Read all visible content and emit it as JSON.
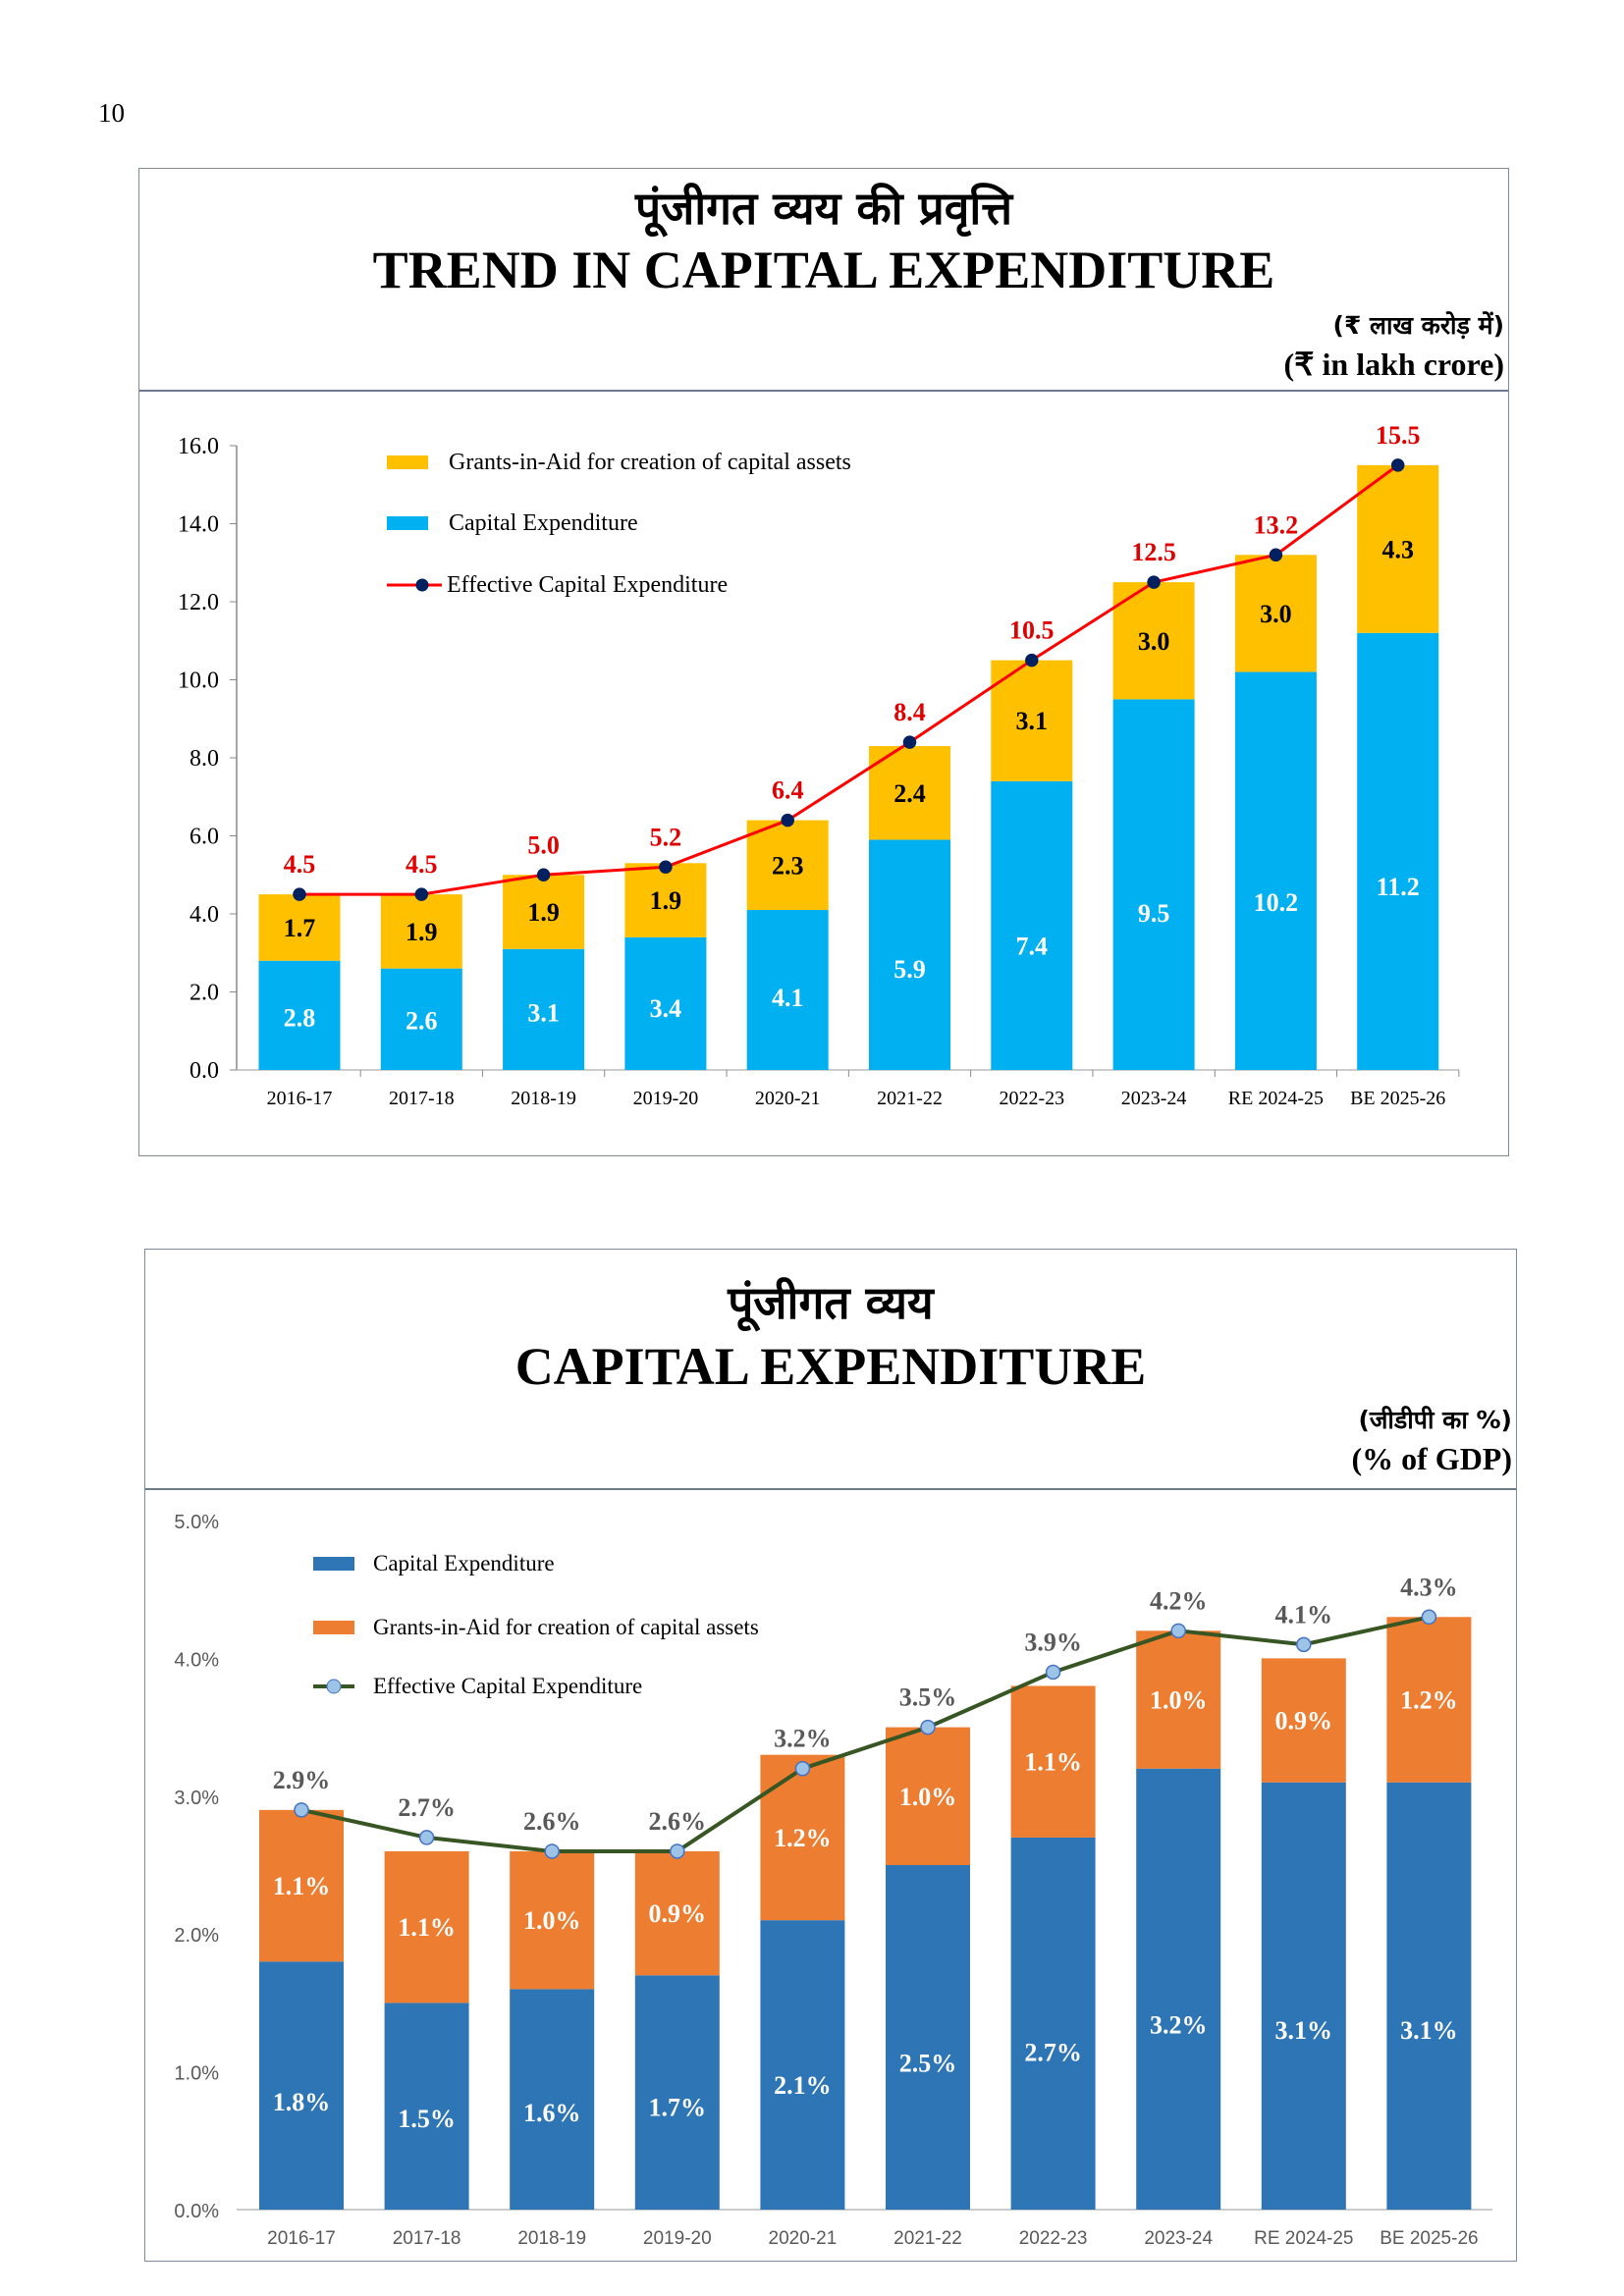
{
  "page_number": "10",
  "chart_data": [
    {
      "type": "bar",
      "stacked": true,
      "title_hindi": "पूंजीगत व्यय की प्रवृत्ति",
      "title": "TREND IN CAPITAL EXPENDITURE",
      "unit_hindi": "(₹ लाख करोड़ में)",
      "unit": "(₹ in lakh crore)",
      "categories": [
        "2016-17",
        "2017-18",
        "2018-19",
        "2019-20",
        "2020-21",
        "2021-22",
        "2022-23",
        "2023-24",
        "RE 2024-25",
        "BE 2025-26"
      ],
      "ylim": [
        0,
        16
      ],
      "yticks": [
        "0.0",
        "2.0",
        "4.0",
        "6.0",
        "8.0",
        "10.0",
        "12.0",
        "14.0",
        "16.0"
      ],
      "legend_placement": "top-left",
      "series": [
        {
          "name": "Capital Expenditure",
          "kind": "bar",
          "color": "#00b0f0",
          "values": [
            2.8,
            2.6,
            3.1,
            3.4,
            4.1,
            5.9,
            7.4,
            9.5,
            10.2,
            11.2
          ],
          "labels": [
            "2.8",
            "2.6",
            "3.1",
            "3.4",
            "4.1",
            "5.9",
            "7.4",
            "9.5",
            "10.2",
            "11.2"
          ]
        },
        {
          "name": "Grants-in-Aid for creation of capital assets",
          "kind": "bar",
          "color": "#ffc000",
          "values": [
            1.7,
            1.9,
            1.9,
            1.9,
            2.3,
            2.4,
            3.1,
            3.0,
            3.0,
            4.3
          ],
          "labels": [
            "1.7",
            "1.9",
            "1.9",
            "1.9",
            "2.3",
            "2.4",
            "3.1",
            "3.0",
            "3.0",
            "4.3"
          ]
        },
        {
          "name": "Effective Capital Expenditure",
          "kind": "line",
          "color": "#ff0000",
          "marker_color": "#002060",
          "values": [
            4.5,
            4.5,
            5.0,
            5.2,
            6.4,
            8.4,
            10.5,
            12.5,
            13.2,
            15.5
          ],
          "labels": [
            "4.5",
            "4.5",
            "5.0",
            "5.2",
            "6.4",
            "8.4",
            "10.5",
            "12.5",
            "13.2",
            "15.5"
          ]
        }
      ],
      "legend_order": [
        1,
        0,
        2
      ]
    },
    {
      "type": "bar",
      "stacked": true,
      "title_hindi": "पूंजीगत  व्यय",
      "title": "CAPITAL EXPENDITURE",
      "unit_hindi": "(जीडीपी का %)",
      "unit": "(% of GDP)",
      "categories": [
        "2016-17",
        "2017-18",
        "2018-19",
        "2019-20",
        "2020-21",
        "2021-22",
        "2022-23",
        "2023-24",
        "RE 2024-25",
        "BE 2025-26"
      ],
      "ylim": [
        0,
        5
      ],
      "yticks": [
        "0.0%",
        "1.0%",
        "2.0%",
        "3.0%",
        "4.0%",
        "5.0%"
      ],
      "legend_placement": "top-left",
      "series": [
        {
          "name": "Capital Expenditure",
          "kind": "bar",
          "color": "#2e75b6",
          "values": [
            1.8,
            1.5,
            1.6,
            1.7,
            2.1,
            2.5,
            2.7,
            3.2,
            3.1,
            3.1
          ],
          "labels": [
            "1.8%",
            "1.5%",
            "1.6%",
            "1.7%",
            "2.1%",
            "2.5%",
            "2.7%",
            "3.2%",
            "3.1%",
            "3.1%"
          ]
        },
        {
          "name": "Grants-in-Aid for creation of capital assets",
          "kind": "bar",
          "color": "#ed7d31",
          "values": [
            1.1,
            1.1,
            1.0,
            0.9,
            1.2,
            1.0,
            1.1,
            1.0,
            0.9,
            1.2
          ],
          "labels": [
            "1.1%",
            "1.1%",
            "1.0%",
            "0.9%",
            "1.2%",
            "1.0%",
            "1.1%",
            "1.0%",
            "0.9%",
            "1.2%"
          ]
        },
        {
          "name": "Effective Capital Expenditure",
          "kind": "line",
          "color": "#375623",
          "marker_color": "#9dc3e6",
          "values": [
            2.9,
            2.7,
            2.6,
            2.6,
            3.2,
            3.5,
            3.9,
            4.2,
            4.1,
            4.3
          ],
          "labels": [
            "2.9%",
            "2.7%",
            "2.6%",
            "2.6%",
            "3.2%",
            "3.5%",
            "3.9%",
            "4.2%",
            "4.1%",
            "4.3%"
          ]
        }
      ],
      "legend_order": [
        0,
        1,
        2
      ]
    }
  ]
}
